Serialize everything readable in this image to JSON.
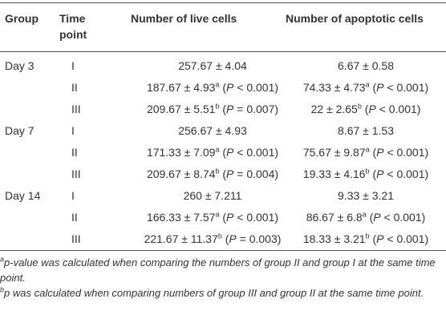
{
  "table": {
    "headers": {
      "group": "Group",
      "time_point": "Time point",
      "live": "Number of live cells",
      "apoptotic": "Number of apoptotic cells"
    },
    "groups": [
      {
        "label": "Day 3",
        "rows": [
          {
            "time": "I",
            "live": {
              "value": "257.67 ± 4.04"
            },
            "apoptotic": {
              "value": "6.67 ± 0.58"
            }
          },
          {
            "time": "II",
            "live": {
              "value": "187.67 ± 4.93",
              "sup": "a",
              "p": "(P < 0.001)"
            },
            "apoptotic": {
              "value": "74.33 ± 4.73",
              "sup": "a",
              "p": "(P < 0.001)"
            }
          },
          {
            "time": "III",
            "live": {
              "value": "209.67 ± 5.51",
              "sup": "b",
              "p": "(P = 0.007)"
            },
            "apoptotic": {
              "value": "22 ± 2.65",
              "sup": "b",
              "p": "(P < 0.001)"
            }
          }
        ]
      },
      {
        "label": "Day 7",
        "rows": [
          {
            "time": "I",
            "live": {
              "value": "256.67 ± 4.93"
            },
            "apoptotic": {
              "value": "8.67 ± 1.53"
            }
          },
          {
            "time": "II",
            "live": {
              "value": "171.33 ± 7.09",
              "sup": "a",
              "p": "(P < 0.001)"
            },
            "apoptotic": {
              "value": "75.67 ± 9.87",
              "sup": "a",
              "p": "(P < 0.001)"
            }
          },
          {
            "time": "III",
            "live": {
              "value": "209.67 ± 8.74",
              "sup": "b",
              "p": "(P = 0.004)"
            },
            "apoptotic": {
              "value": "19.33 ± 4.16",
              "sup": "b",
              "p": "(P < 0.001)"
            }
          }
        ]
      },
      {
        "label": "Day 14",
        "rows": [
          {
            "time": "I",
            "live": {
              "value": "260 ± 7.211"
            },
            "apoptotic": {
              "value": "9.33 ± 3.21"
            }
          },
          {
            "time": "II",
            "live": {
              "value": "166.33 ± 7.57",
              "sup": "a",
              "p": "(P < 0.001)"
            },
            "apoptotic": {
              "value": "86.67 ± 6.8",
              "sup": "a",
              "p": "(P < 0.001)"
            }
          },
          {
            "time": "III",
            "live": {
              "value": "221.67 ± 11.37",
              "sup": "b",
              "p": "(P = 0.003)"
            },
            "apoptotic": {
              "value": "18.33 ± 3.21",
              "sup": "b",
              "p": "(P < 0.001)"
            }
          }
        ]
      }
    ],
    "footnotes": [
      {
        "mark": "a",
        "text": "p-value was calculated when comparing the numbers of group II and group I at the same time point."
      },
      {
        "mark": "b",
        "text": "p was calculated when comparing numbers of group III and group II at the same time point."
      }
    ]
  }
}
